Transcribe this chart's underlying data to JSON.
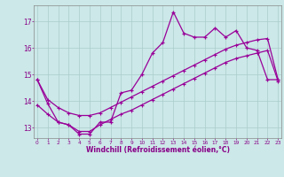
{
  "title": "",
  "xlabel": "Windchill (Refroidissement éolien,°C)",
  "ylabel": "",
  "bg_color": "#cce8e8",
  "line_color": "#990099",
  "grid_color": "#aacccc",
  "x_ticks": [
    0,
    1,
    2,
    3,
    4,
    5,
    6,
    7,
    8,
    9,
    10,
    11,
    12,
    13,
    14,
    15,
    16,
    17,
    18,
    19,
    20,
    21,
    22,
    23
  ],
  "y_ticks": [
    13,
    14,
    15,
    16,
    17
  ],
  "xlim": [
    -0.3,
    23.3
  ],
  "ylim": [
    12.6,
    17.6
  ],
  "series1_x": [
    0,
    1,
    2,
    3,
    4,
    5,
    6,
    7,
    8,
    9,
    10,
    11,
    12,
    13,
    14,
    15,
    16,
    17,
    18,
    19,
    20,
    21,
    22,
    23
  ],
  "series1_y": [
    14.8,
    13.9,
    13.2,
    13.1,
    12.75,
    12.75,
    13.2,
    13.2,
    14.3,
    14.4,
    15.0,
    15.8,
    16.2,
    17.35,
    16.55,
    16.4,
    16.4,
    16.75,
    16.4,
    16.65,
    16.0,
    15.9,
    14.8,
    14.8
  ],
  "series2_x": [
    0,
    1,
    2,
    3,
    4,
    5,
    6,
    7,
    8,
    9,
    10,
    11,
    12,
    13,
    14,
    15,
    16,
    17,
    18,
    19,
    20,
    21,
    22,
    23
  ],
  "series2_y": [
    13.85,
    13.5,
    13.2,
    13.1,
    12.85,
    12.85,
    13.1,
    13.3,
    13.5,
    13.65,
    13.85,
    14.05,
    14.25,
    14.45,
    14.65,
    14.85,
    15.05,
    15.25,
    15.45,
    15.6,
    15.7,
    15.8,
    15.9,
    14.75
  ],
  "series3_x": [
    0,
    1,
    2,
    3,
    4,
    5,
    6,
    7,
    8,
    9,
    10,
    11,
    12,
    13,
    14,
    15,
    16,
    17,
    18,
    19,
    20,
    21,
    22,
    23
  ],
  "series3_y": [
    14.8,
    14.05,
    13.75,
    13.55,
    13.45,
    13.45,
    13.55,
    13.75,
    13.95,
    14.15,
    14.35,
    14.55,
    14.75,
    14.95,
    15.15,
    15.35,
    15.55,
    15.75,
    15.95,
    16.1,
    16.2,
    16.3,
    16.35,
    14.8
  ]
}
